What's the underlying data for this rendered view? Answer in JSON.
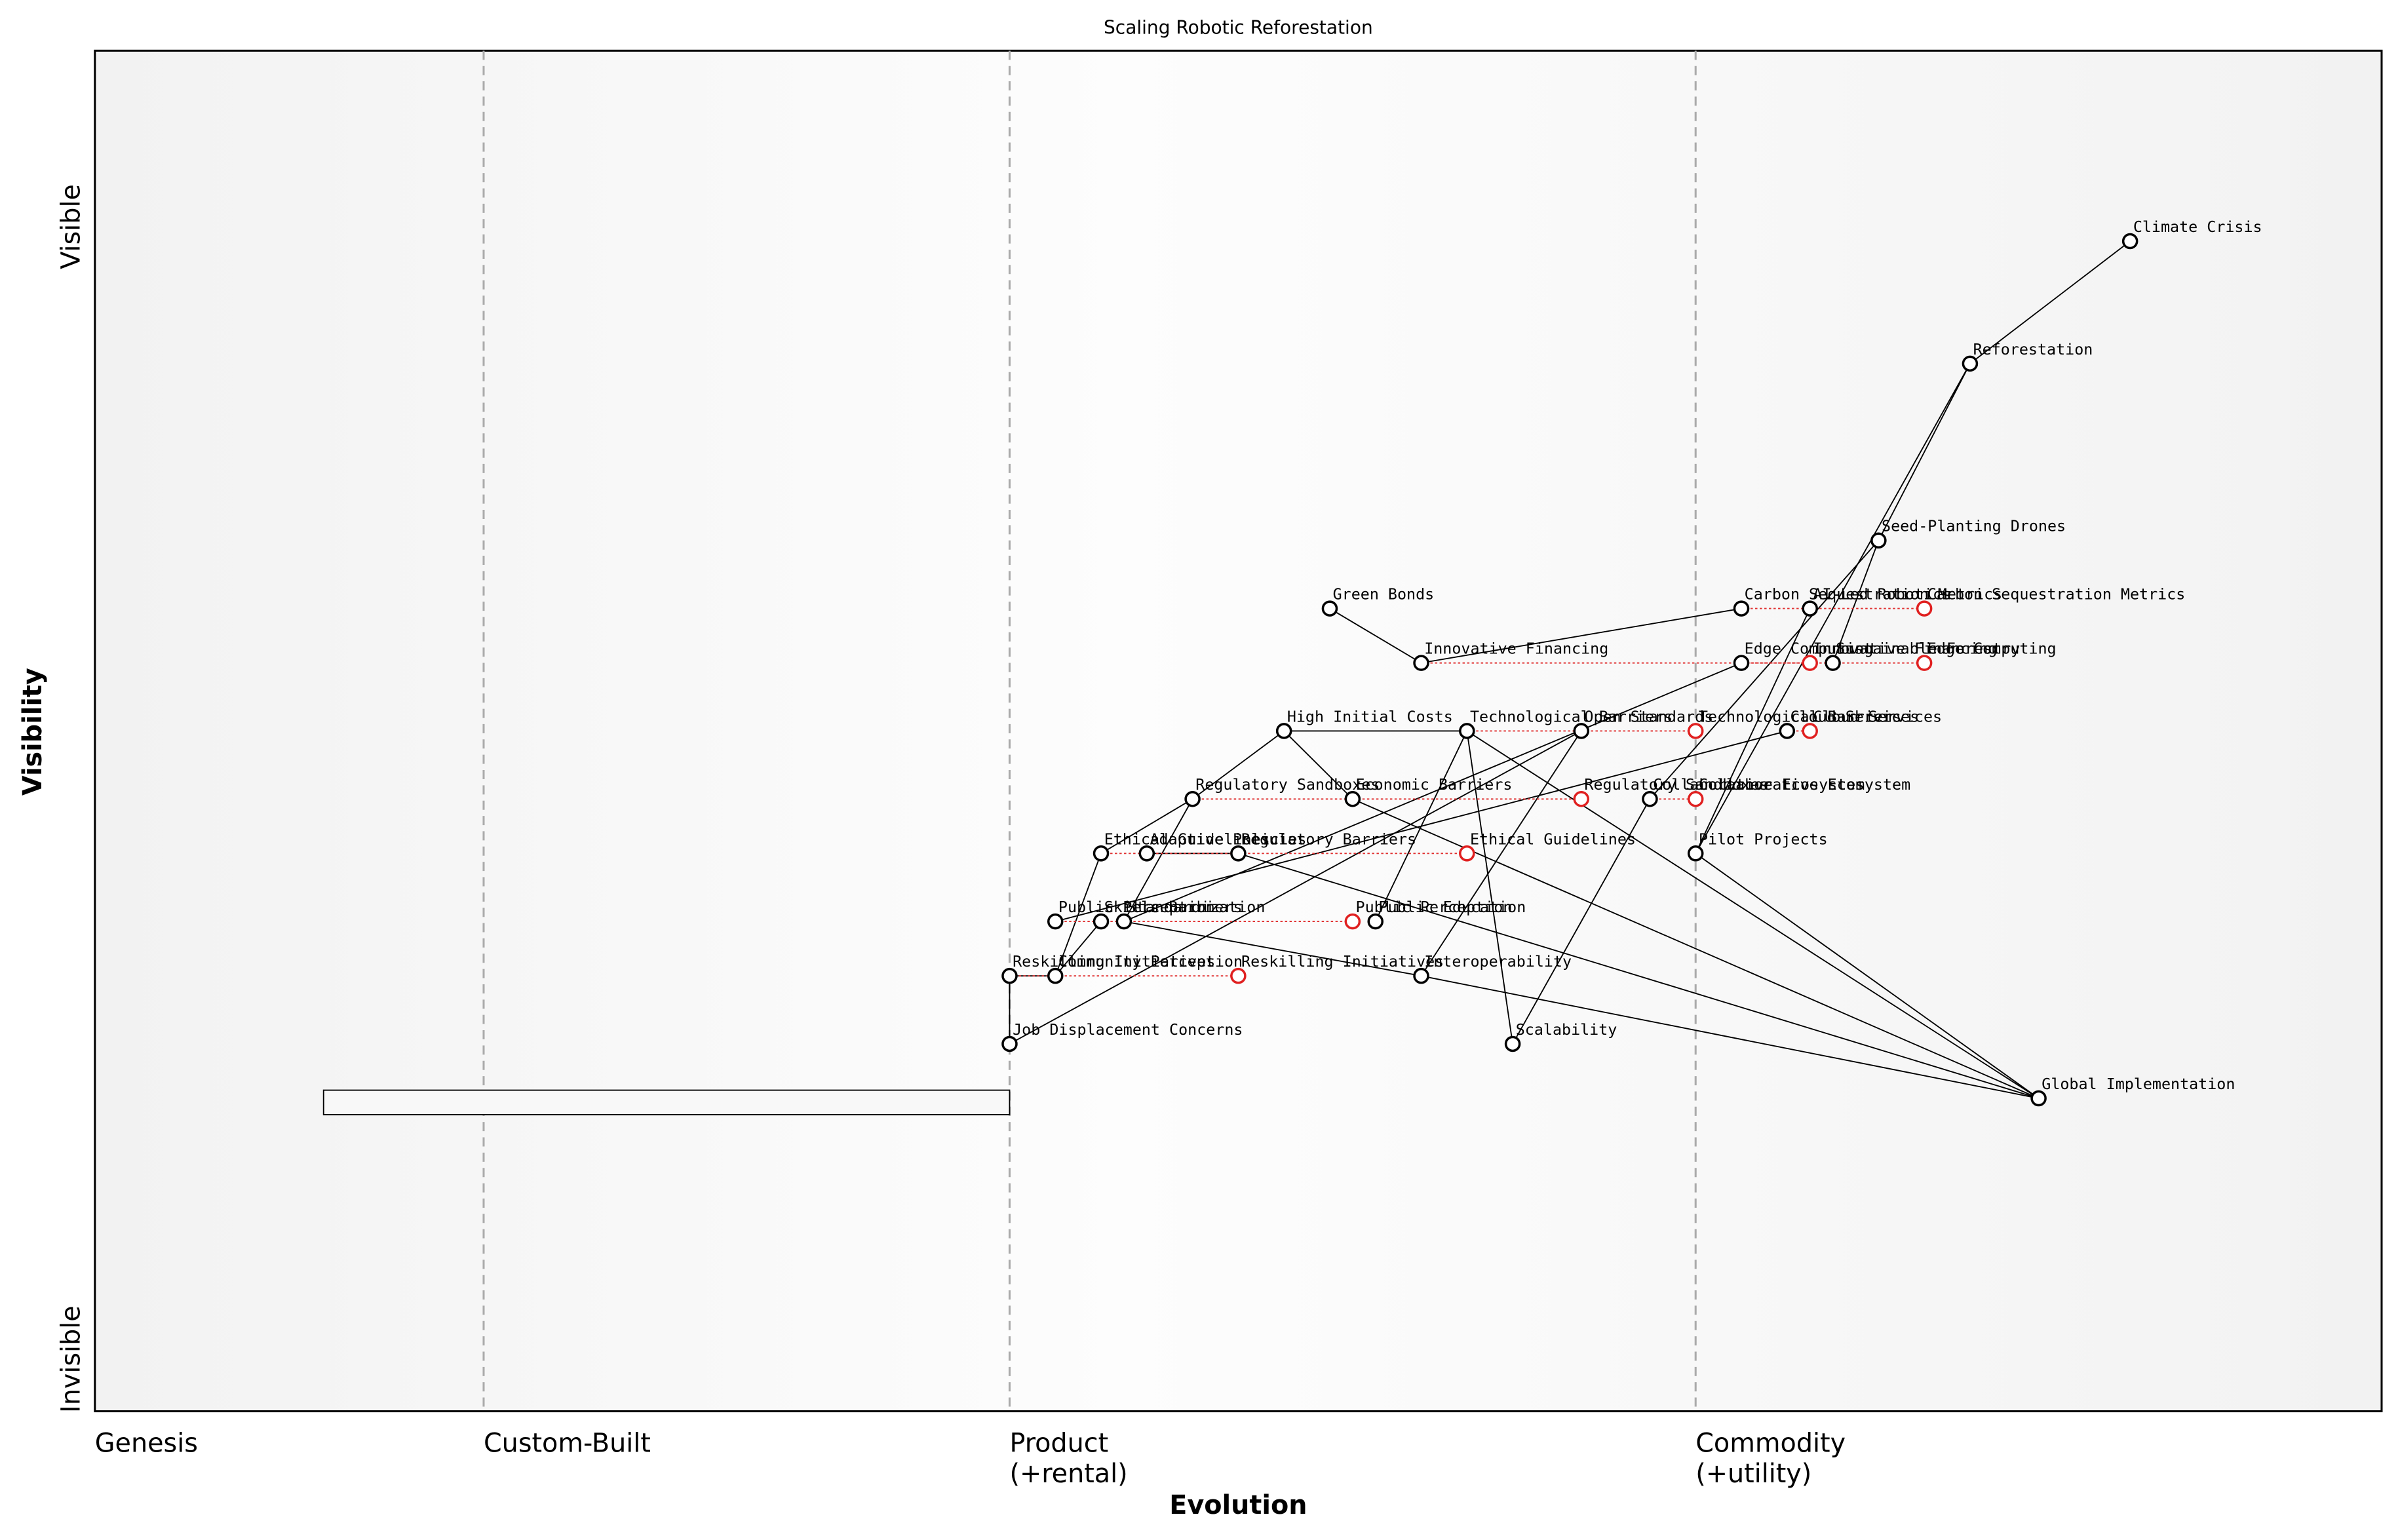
{
  "title": "Scaling Robotic Reforestation",
  "x_axis_label": "Evolution",
  "y_axis_label": "Visibility",
  "y_ends": {
    "top": "Visible",
    "bottom": "Invisible"
  },
  "stages": [
    {
      "at": 0,
      "lines": [
        "Genesis"
      ]
    },
    {
      "at": 0.17,
      "lines": [
        "Custom-Built"
      ]
    },
    {
      "at": 0.4,
      "lines": [
        "Product",
        "(+rental)"
      ]
    },
    {
      "at": 0.7,
      "lines": [
        "Commodity",
        "(+utility)"
      ]
    }
  ],
  "nodes": [
    {
      "label": "Climate Crisis",
      "evolution": 0.89,
      "visibility": 0.86
    },
    {
      "label": "Reforestation",
      "evolution": 0.82,
      "visibility": 0.77
    },
    {
      "label": "Seed-Planting Drones",
      "evolution": 0.78,
      "visibility": 0.64
    },
    {
      "label": "Carbon Sequestration Metrics",
      "evolution": 0.72,
      "visibility": 0.59
    },
    {
      "label": "AI-Led Robotics",
      "evolution": 0.75,
      "visibility": 0.59
    },
    {
      "label": "Green Bonds",
      "evolution": 0.54,
      "visibility": 0.59
    },
    {
      "label": "Innovative Financing",
      "evolution": 0.58,
      "visibility": 0.55
    },
    {
      "label": "Edge Computing",
      "evolution": 0.72,
      "visibility": 0.55
    },
    {
      "label": "Sustainable Forestry",
      "evolution": 0.76,
      "visibility": 0.55
    },
    {
      "label": "High Initial Costs",
      "evolution": 0.52,
      "visibility": 0.5
    },
    {
      "label": "Technological Barriers",
      "evolution": 0.6,
      "visibility": 0.5
    },
    {
      "label": "Open Standards",
      "evolution": 0.65,
      "visibility": 0.5
    },
    {
      "label": "Cloud Services",
      "evolution": 0.74,
      "visibility": 0.5
    },
    {
      "label": "Regulatory Sandboxes",
      "evolution": 0.48,
      "visibility": 0.45
    },
    {
      "label": "Economic Barriers",
      "evolution": 0.55,
      "visibility": 0.45
    },
    {
      "label": "Collaborative Ecosystem",
      "evolution": 0.68,
      "visibility": 0.45
    },
    {
      "label": "Pilot Projects",
      "evolution": 0.7,
      "visibility": 0.41
    },
    {
      "label": "Ethical Guidelines",
      "evolution": 0.44,
      "visibility": 0.41
    },
    {
      "label": "Regulatory Barriers",
      "evolution": 0.5,
      "visibility": 0.41
    },
    {
      "label": "Adaptive Policies",
      "evolution": 0.46,
      "visibility": 0.41
    },
    {
      "label": "Public Perception",
      "evolution": 0.42,
      "visibility": 0.36
    },
    {
      "label": "Standardization",
      "evolution": 0.45,
      "visibility": 0.36
    },
    {
      "label": "Skills Barriers",
      "evolution": 0.44,
      "visibility": 0.36
    },
    {
      "label": "Public Education",
      "evolution": 0.56,
      "visibility": 0.36
    },
    {
      "label": "Reskilling Initiatives",
      "evolution": 0.4,
      "visibility": 0.32
    },
    {
      "label": "Interoperability",
      "evolution": 0.58,
      "visibility": 0.32
    },
    {
      "label": "Job Displacement Concerns",
      "evolution": 0.4,
      "visibility": 0.27
    },
    {
      "label": "Scalability",
      "evolution": 0.62,
      "visibility": 0.27
    },
    {
      "label": "Global Implementation",
      "evolution": 0.85,
      "visibility": 0.23
    },
    {
      "label": "Community Perception",
      "evolution": 0.42,
      "visibility": 0.32
    }
  ],
  "evolutions": [
    {
      "node": 3,
      "to": 0.8
    },
    {
      "node": 7,
      "to": 0.8
    },
    {
      "node": 6,
      "to": 0.75
    },
    {
      "node": 10,
      "to": 0.7
    },
    {
      "node": 12,
      "to": 0.75
    },
    {
      "node": 13,
      "to": 0.65
    },
    {
      "node": 15,
      "to": 0.7
    },
    {
      "node": 17,
      "to": 0.6
    },
    {
      "node": 20,
      "to": 0.55
    },
    {
      "node": 24,
      "to": 0.5
    }
  ],
  "links": [
    [
      0,
      1
    ],
    [
      1,
      16
    ],
    [
      1,
      2
    ],
    [
      2,
      8
    ],
    [
      2,
      15
    ],
    [
      4,
      16
    ],
    [
      16,
      28
    ],
    [
      10,
      28
    ],
    [
      14,
      28
    ],
    [
      18,
      28
    ],
    [
      25,
      28
    ],
    [
      21,
      25
    ],
    [
      5,
      6
    ],
    [
      6,
      3
    ],
    [
      9,
      13
    ],
    [
      9,
      14
    ],
    [
      9,
      10
    ],
    [
      13,
      17
    ],
    [
      17,
      29
    ],
    [
      26,
      24
    ],
    [
      26,
      11
    ],
    [
      10,
      27
    ],
    [
      10,
      23
    ],
    [
      11,
      25
    ],
    [
      15,
      27
    ],
    [
      12,
      20
    ],
    [
      19,
      18
    ],
    [
      22,
      29
    ],
    [
      21,
      13
    ],
    [
      24,
      29
    ],
    [
      7,
      21
    ]
  ],
  "inertia": {
    "from": 0.1,
    "to": 0.4,
    "visibility": 0.227
  }
}
